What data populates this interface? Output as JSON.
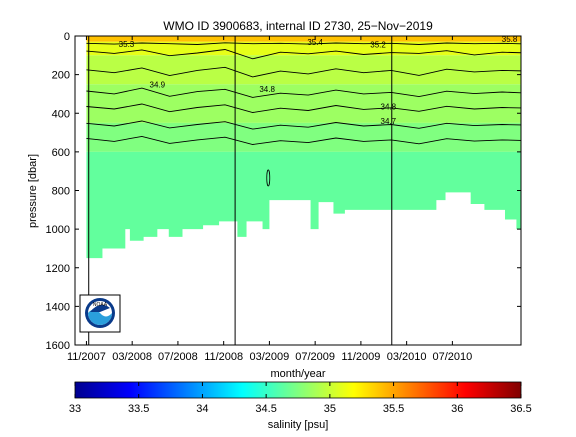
{
  "chart_data": {
    "type": "heatmap",
    "title": "WMO ID 3900683, internal ID 2730, 25−Nov−2019",
    "xlabel": "month/year",
    "ylabel": "pressure [dbar]",
    "x_ticks": [
      "11/2007",
      "03/2008",
      "07/2008",
      "11/2008",
      "03/2009",
      "07/2009",
      "11/2009",
      "03/2010",
      "07/2010"
    ],
    "y_ticks": [
      0,
      200,
      400,
      600,
      800,
      1000,
      1200,
      1400,
      1600
    ],
    "ylim": [
      0,
      1600
    ],
    "y_reversed": true,
    "xlim": [
      "10/2007",
      "01/2011"
    ],
    "grid": false,
    "colorbar": {
      "label": "salinity [psu]",
      "min": 33,
      "max": 36.5,
      "ticks": [
        33,
        33.5,
        34,
        34.5,
        35,
        35.5,
        36,
        36.5
      ],
      "colormap": "jet"
    },
    "contour_labels": [
      "34.9",
      "34.8",
      "34.8",
      "34.7",
      "35.4",
      "35.3",
      "35.2",
      "35.8"
    ],
    "layers": [
      {
        "salinity": 35.4,
        "top": 0,
        "bottom": 30
      },
      {
        "salinity": 35.1,
        "top": 30,
        "bottom": 100
      },
      {
        "salinity": 34.95,
        "top": 100,
        "bottom": 250
      },
      {
        "salinity": 34.85,
        "top": 250,
        "bottom": 450
      },
      {
        "salinity": 34.75,
        "top": 450,
        "bottom": 600
      },
      {
        "salinity": 34.65,
        "top": 600,
        "bottom": 1200
      }
    ],
    "data_bottom_dbar": [
      {
        "month": 1.0,
        "dbar": 1150
      },
      {
        "month": 1.5,
        "dbar": 1150
      },
      {
        "month": 2.4,
        "dbar": 1150
      },
      {
        "month": 2.4,
        "dbar": 1100
      },
      {
        "month": 4.4,
        "dbar": 1100
      },
      {
        "month": 4.4,
        "dbar": 1000
      },
      {
        "month": 4.8,
        "dbar": 1000
      },
      {
        "month": 4.8,
        "dbar": 1060
      },
      {
        "month": 6.0,
        "dbar": 1060
      },
      {
        "month": 6.0,
        "dbar": 1040
      },
      {
        "month": 7.2,
        "dbar": 1040
      },
      {
        "month": 7.2,
        "dbar": 1000
      },
      {
        "month": 8.2,
        "dbar": 1000
      },
      {
        "month": 8.2,
        "dbar": 1040
      },
      {
        "month": 9.4,
        "dbar": 1040
      },
      {
        "month": 9.4,
        "dbar": 1000
      },
      {
        "month": 11.2,
        "dbar": 1000
      },
      {
        "month": 11.2,
        "dbar": 980
      },
      {
        "month": 12.6,
        "dbar": 980
      },
      {
        "month": 12.6,
        "dbar": 960
      },
      {
        "month": 14.2,
        "dbar": 960
      },
      {
        "month": 14.2,
        "dbar": 1040
      },
      {
        "month": 15.0,
        "dbar": 1040
      },
      {
        "month": 15.0,
        "dbar": 960
      },
      {
        "month": 16.4,
        "dbar": 960
      },
      {
        "month": 16.4,
        "dbar": 1000
      },
      {
        "month": 17.0,
        "dbar": 1000
      },
      {
        "month": 17.0,
        "dbar": 850
      },
      {
        "month": 20.6,
        "dbar": 850
      },
      {
        "month": 20.6,
        "dbar": 1000
      },
      {
        "month": 21.3,
        "dbar": 1000
      },
      {
        "month": 21.3,
        "dbar": 860
      },
      {
        "month": 22.6,
        "dbar": 860
      },
      {
        "month": 22.6,
        "dbar": 920
      },
      {
        "month": 23.6,
        "dbar": 920
      },
      {
        "month": 23.6,
        "dbar": 900
      },
      {
        "month": 31.6,
        "dbar": 900
      },
      {
        "month": 31.6,
        "dbar": 850
      },
      {
        "month": 32.4,
        "dbar": 850
      },
      {
        "month": 32.4,
        "dbar": 810
      },
      {
        "month": 34.6,
        "dbar": 810
      },
      {
        "month": 34.6,
        "dbar": 870
      },
      {
        "month": 35.8,
        "dbar": 870
      },
      {
        "month": 35.8,
        "dbar": 900
      },
      {
        "month": 37.6,
        "dbar": 900
      },
      {
        "month": 37.6,
        "dbar": 950
      },
      {
        "month": 38.6,
        "dbar": 950
      },
      {
        "month": 38.6,
        "dbar": 1000
      },
      {
        "month": 39.6,
        "dbar": 1000
      },
      {
        "month": 39.6,
        "dbar": 1060
      },
      {
        "month": 40.4,
        "dbar": 1060
      },
      {
        "month": 40.4,
        "dbar": 1120
      },
      {
        "month": 41.2,
        "dbar": 1120
      },
      {
        "month": 41.2,
        "dbar": 1190
      },
      {
        "month": 42.2,
        "dbar": 1190
      }
    ],
    "contours_dbar": [
      [
        38,
        42,
        36,
        40,
        44,
        35,
        40,
        38,
        42,
        36,
        40,
        38,
        44,
        36,
        40,
        38,
        42,
        37
      ],
      [
        78,
        90,
        72,
        102,
        88,
        70,
        118,
        84,
        92,
        78,
        96,
        86,
        90,
        76,
        98,
        84,
        88,
        82
      ],
      [
        175,
        190,
        165,
        205,
        178,
        162,
        212,
        182,
        196,
        170,
        190,
        178,
        204,
        172,
        186,
        178,
        182,
        176
      ],
      [
        285,
        300,
        270,
        312,
        288,
        276,
        318,
        296,
        306,
        280,
        300,
        292,
        314,
        286,
        298,
        290,
        296,
        288
      ],
      [
        365,
        378,
        352,
        392,
        370,
        356,
        396,
        374,
        386,
        360,
        380,
        372,
        390,
        364,
        378,
        370,
        374,
        366
      ],
      [
        452,
        466,
        440,
        476,
        458,
        444,
        482,
        462,
        472,
        448,
        466,
        458,
        478,
        452,
        464,
        458,
        462,
        454
      ],
      [
        530,
        546,
        520,
        556,
        538,
        524,
        562,
        542,
        552,
        528,
        546,
        538,
        558,
        532,
        544,
        538,
        542,
        534
      ]
    ],
    "vertical_markers_month": [
      1.2,
      14.0,
      27.7
    ]
  },
  "logo": {
    "text": "NOAA",
    "colors": [
      "#0a3a8a",
      "#2a9fdc",
      "#ffffff"
    ]
  },
  "colors": {
    "axis": "#000000",
    "contour": "#000000",
    "blank": "#ffffff"
  }
}
